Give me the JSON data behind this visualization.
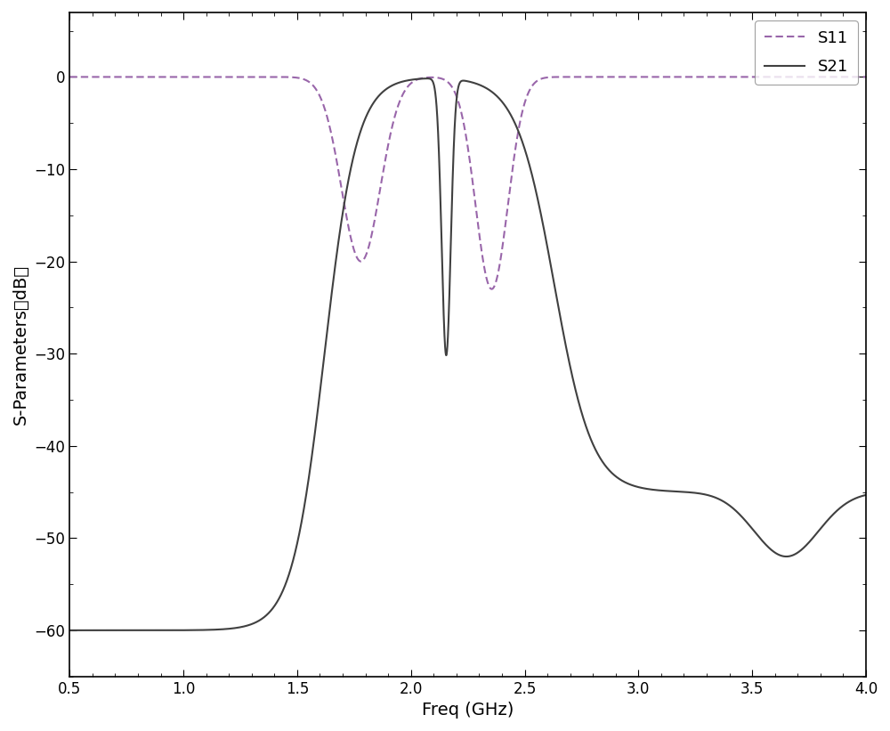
{
  "xlim": [
    0.5,
    4.0
  ],
  "ylim": [
    -65,
    7
  ],
  "xlabel": "Freq (GHz)",
  "ylabel": "S-Parameters（dB）",
  "yticks": [
    0,
    -10,
    -20,
    -30,
    -40,
    -50,
    -60
  ],
  "xticks": [
    0.5,
    1.0,
    1.5,
    2.0,
    2.5,
    3.0,
    3.5,
    4.0
  ],
  "s11_color": "#9966aa",
  "s21_color": "#404040",
  "bg_color": "#ffffff",
  "legend_loc": "upper right"
}
